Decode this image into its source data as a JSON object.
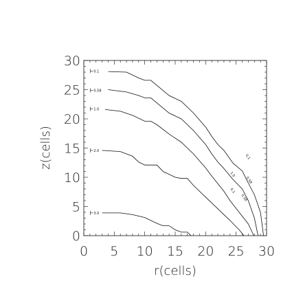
{
  "chart_data": {
    "type": "line",
    "title": "",
    "xlabel": "r(cells)",
    "ylabel": "z(cells)",
    "xlim": [
      0,
      30
    ],
    "ylim": [
      0,
      30
    ],
    "x_ticks": [
      0,
      5,
      10,
      15,
      20,
      25,
      30
    ],
    "y_ticks": [
      0,
      5,
      10,
      15,
      20,
      25,
      30
    ],
    "grid": false,
    "series": [
      {
        "name": "0.1",
        "points": [
          [
            4,
            28.1
          ],
          [
            7,
            28
          ],
          [
            9,
            27
          ],
          [
            10,
            26.6
          ],
          [
            11,
            26.6
          ],
          [
            14,
            24
          ],
          [
            16,
            23
          ],
          [
            18,
            21
          ],
          [
            20,
            18.6
          ],
          [
            21,
            17
          ],
          [
            22,
            15.6
          ],
          [
            23,
            14.6
          ],
          [
            24.5,
            12.4
          ],
          [
            26,
            11.1
          ],
          [
            27,
            9
          ],
          [
            28,
            7
          ],
          [
            29,
            4
          ],
          [
            29.5,
            0
          ]
        ]
      },
      {
        "name": "0.58",
        "points": [
          [
            4,
            25
          ],
          [
            7,
            24.6
          ],
          [
            9,
            24
          ],
          [
            10,
            23.6
          ],
          [
            11,
            23.6
          ],
          [
            14,
            21
          ],
          [
            16,
            20
          ],
          [
            18,
            18
          ],
          [
            20,
            15.6
          ],
          [
            21,
            14
          ],
          [
            22,
            12.6
          ],
          [
            23,
            11.5
          ],
          [
            24.5,
            9.6
          ],
          [
            26,
            8
          ],
          [
            27,
            6
          ],
          [
            28,
            3
          ],
          [
            28.6,
            0
          ]
        ]
      },
      {
        "name": "1.0",
        "points": [
          [
            3.5,
            21.6
          ],
          [
            6,
            21.3
          ],
          [
            8,
            20.6
          ],
          [
            10,
            19.6
          ],
          [
            11,
            19.6
          ],
          [
            12,
            19
          ],
          [
            14,
            17.4
          ],
          [
            16,
            16
          ],
          [
            18,
            14
          ],
          [
            20,
            11.6
          ],
          [
            21,
            10.2
          ],
          [
            22,
            8.9
          ],
          [
            23,
            7.6
          ],
          [
            24,
            6
          ],
          [
            25.5,
            4
          ],
          [
            27,
            2
          ],
          [
            27.9,
            0
          ]
        ]
      },
      {
        "name": "2.0",
        "points": [
          [
            3,
            14.6
          ],
          [
            6,
            14.4
          ],
          [
            8,
            13.6
          ],
          [
            9,
            12.6
          ],
          [
            10,
            12.1
          ],
          [
            12,
            12.1
          ],
          [
            13,
            11
          ],
          [
            15,
            10
          ],
          [
            16,
            9.8
          ],
          [
            17,
            9.8
          ],
          [
            18,
            8.6
          ],
          [
            20,
            6.6
          ],
          [
            22,
            4.6
          ],
          [
            24,
            2.6
          ],
          [
            25.5,
            1
          ],
          [
            26.3,
            0
          ]
        ]
      },
      {
        "name": "3.0",
        "points": [
          [
            3,
            3.9
          ],
          [
            6,
            3.9
          ],
          [
            8,
            3.6
          ],
          [
            10,
            3.1
          ],
          [
            11,
            2.6
          ],
          [
            12,
            2.1
          ],
          [
            13,
            1.7
          ],
          [
            14,
            1.7
          ],
          [
            15,
            1
          ],
          [
            16,
            0.6
          ],
          [
            17,
            0.6
          ],
          [
            17.6,
            0
          ]
        ]
      }
    ],
    "contour_labels": [
      {
        "text": "0.1",
        "x": 1.4,
        "y": 28.2,
        "inline": false
      },
      {
        "text": "0.58",
        "x": 1.4,
        "y": 24.9,
        "inline": false
      },
      {
        "text": "1.0",
        "x": 1.4,
        "y": 21.7,
        "inline": false
      },
      {
        "text": "2.0",
        "x": 1.4,
        "y": 14.6,
        "inline": false
      },
      {
        "text": "3.0",
        "x": 1.4,
        "y": 3.9,
        "inline": false
      },
      {
        "text": "0.1",
        "x": 26.8,
        "y": 13.4,
        "inline": true
      },
      {
        "text": "1.0",
        "x": 24.3,
        "y": 10.4,
        "inline": true
      },
      {
        "text": "0.58",
        "x": 27.0,
        "y": 9.4,
        "inline": true
      },
      {
        "text": "0.1",
        "x": 24.3,
        "y": 7.6,
        "inline": true
      },
      {
        "text": "0.58",
        "x": 26.2,
        "y": 6.4,
        "inline": true
      }
    ]
  }
}
